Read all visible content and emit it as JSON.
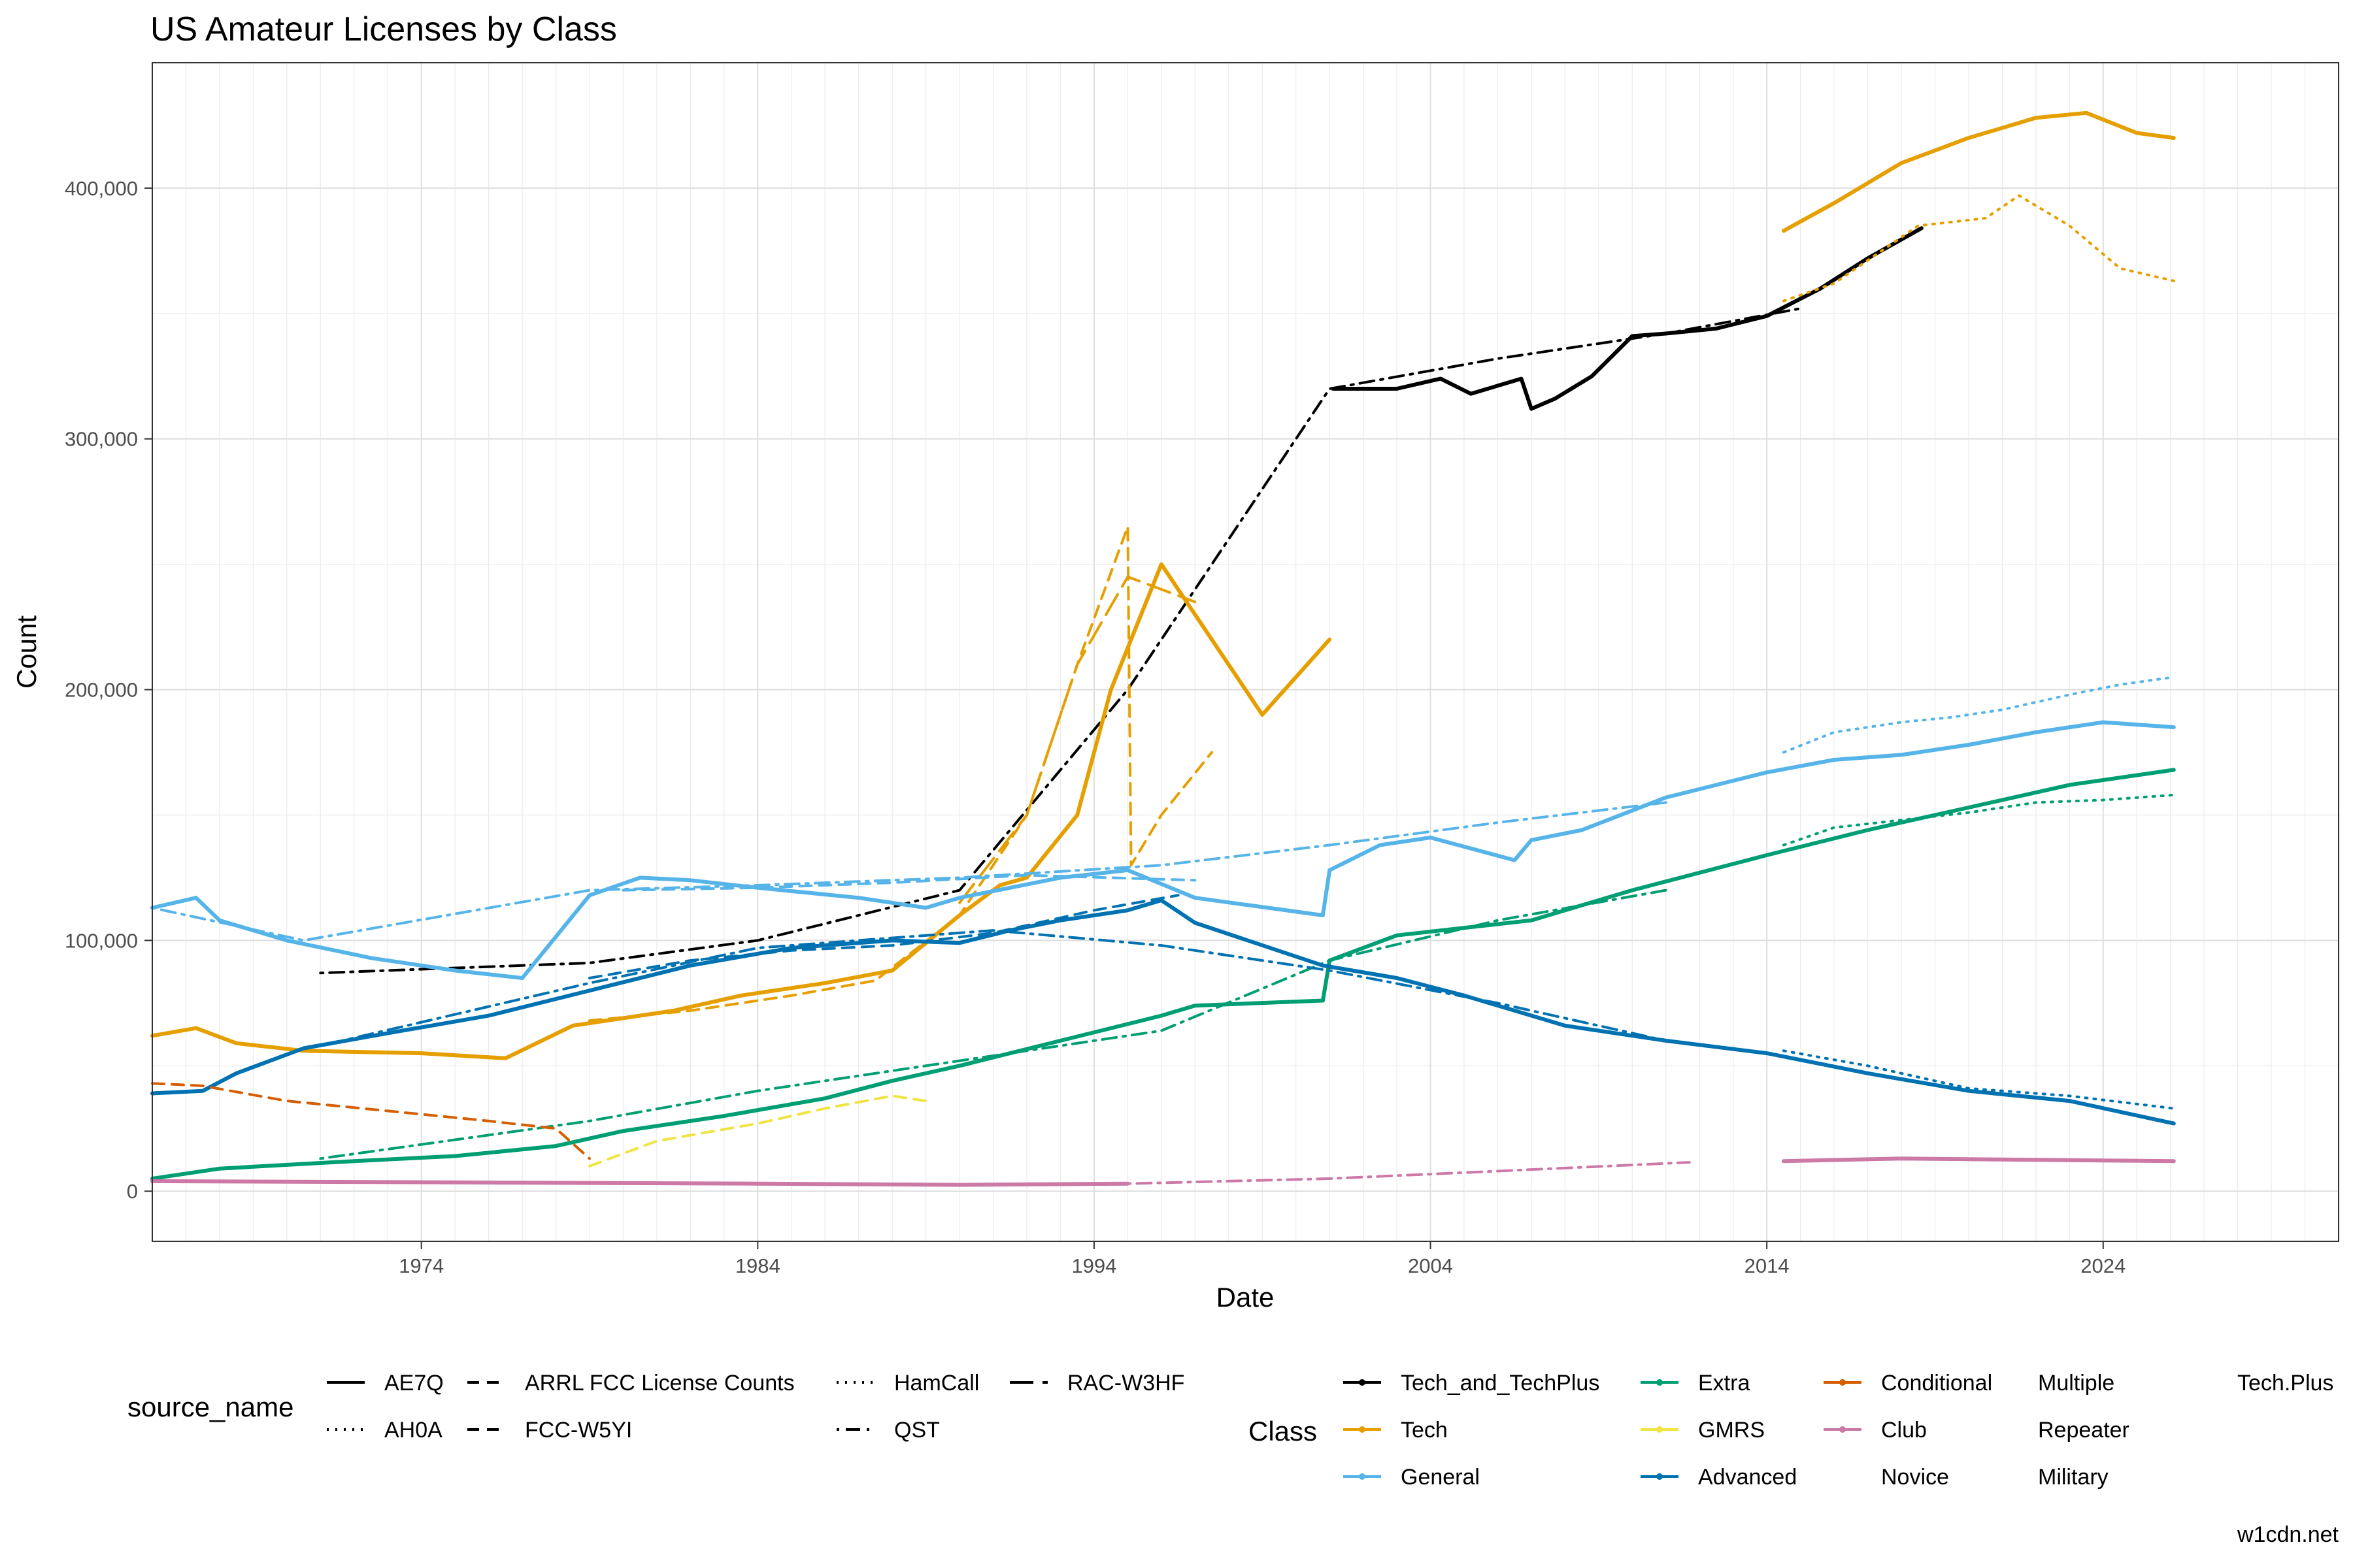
{
  "chart_data": {
    "type": "line",
    "title": "US Amateur Licenses by Class",
    "xlabel": "Date",
    "ylabel": "Count",
    "xlim": [
      1966,
      2031
    ],
    "ylim": [
      -20000,
      450000
    ],
    "x_ticks": [
      1974,
      1984,
      1994,
      2004,
      2014,
      2024
    ],
    "x_tick_labels": [
      "1974",
      "1984",
      "1994",
      "2004",
      "2014",
      "2024"
    ],
    "y_ticks": [
      0,
      100000,
      200000,
      300000,
      400000
    ],
    "y_tick_labels": [
      "0",
      "100,000",
      "200,000",
      "300,000",
      "400,000"
    ],
    "grid": true,
    "caption": "w1cdn.net",
    "source_legend": {
      "title": "source_name",
      "entries": [
        {
          "label": "AE7Q",
          "dash": "solid"
        },
        {
          "label": "AH0A",
          "dash": "dotted"
        },
        {
          "label": "ARRL FCC License Counts",
          "dash": "dashed"
        },
        {
          "label": "FCC-W5YI",
          "dash": "dashed"
        },
        {
          "label": "HamCall",
          "dash": "dotted"
        },
        {
          "label": "QST",
          "dash": "dotdash"
        },
        {
          "label": "RAC-W3HF",
          "dash": "longdash"
        }
      ]
    },
    "class_legend": {
      "title": "Class",
      "entries": [
        {
          "label": "Tech_and_TechPlus",
          "color": "#000000"
        },
        {
          "label": "Tech",
          "color": "#E69F00"
        },
        {
          "label": "General",
          "color": "#56B4E9"
        },
        {
          "label": "Extra",
          "color": "#009E73"
        },
        {
          "label": "GMRS",
          "color": "#F0E442"
        },
        {
          "label": "Advanced",
          "color": "#0072B2"
        },
        {
          "label": "Conditional",
          "color": "#D55E00"
        },
        {
          "label": "Club",
          "color": "#CC79A7"
        },
        {
          "label": "Novice",
          "color": ""
        },
        {
          "label": "Multiple",
          "color": ""
        },
        {
          "label": "Repeater",
          "color": ""
        },
        {
          "label": "Military",
          "color": ""
        },
        {
          "label": "Tech.Plus",
          "color": ""
        }
      ]
    },
    "series": [
      {
        "name": "Tech_and_TechPlus / AE7Q",
        "color": "#000000",
        "dash": "solid",
        "x": [
          2001.1,
          2003,
          2004.3,
          2005.2,
          2006.7,
          2007.0,
          2007.7,
          2008.8,
          2010,
          2011,
          2012.5,
          2014,
          2015.6,
          2017,
          2018.6
        ],
        "y": [
          320000,
          320000,
          324000,
          318000,
          324000,
          312000,
          316000,
          325000,
          341000,
          342000,
          344000,
          349000,
          360000,
          372000,
          384000
        ]
      },
      {
        "name": "Tech_and_TechPlus / QST",
        "color": "#000000",
        "dash": "dotdash",
        "x": [
          1971,
          1979,
          1984,
          1990,
          1995,
          2001,
          2006,
          2011,
          2015
        ],
        "y": [
          87000,
          91000,
          100000,
          120000,
          200000,
          320000,
          332000,
          342000,
          352000
        ]
      },
      {
        "name": "Tech / AE7Q",
        "color": "#E69F00",
        "dash": "solid",
        "x": [
          1966,
          1967.3,
          1968.5,
          1970.5,
          1974,
          1976.5,
          1978.5,
          1981.5,
          1983.5,
          1986,
          1988,
          1990,
          1991.2,
          1992,
          1993.5,
          1994.5,
          1996,
          1999,
          2001.0
        ],
        "y": [
          62000,
          65000,
          59000,
          56000,
          55000,
          53000,
          66000,
          72000,
          78000,
          83000,
          88000,
          110000,
          122000,
          125000,
          150000,
          200000,
          250000,
          190000,
          220000
        ],
        "note": "approximate trace"
      },
      {
        "name": "Tech / AE7Q 2014+",
        "color": "#E69F00",
        "dash": "solid",
        "x": [
          2014.5,
          2016,
          2018,
          2020,
          2022,
          2023.5,
          2025,
          2026.1
        ],
        "y": [
          383000,
          394000,
          410000,
          420000,
          428000,
          430000,
          422000,
          420000
        ]
      },
      {
        "name": "Tech / HamCall",
        "color": "#E69F00",
        "dash": "dotted",
        "x": [
          2014.5,
          2016,
          2018.5,
          2020.5,
          2021.5,
          2023,
          2024.5,
          2026.1
        ],
        "y": [
          355000,
          362000,
          385000,
          388000,
          397000,
          385000,
          368000,
          363000
        ]
      },
      {
        "name": "Tech / FCC-W5YI",
        "color": "#E69F00",
        "dash": "dashed",
        "x": [
          1979,
          1982,
          1985,
          1987.5,
          1990,
          1992,
          1993.5,
          1995,
          1995.1,
          1996,
          1997.5
        ],
        "y": [
          68000,
          72000,
          78000,
          84000,
          110000,
          150000,
          210000,
          265000,
          130000,
          150000,
          175000
        ]
      },
      {
        "name": "Tech / RAC-W3HF",
        "color": "#E69F00",
        "dash": "longdash",
        "x": [
          1990,
          1992,
          1993.5,
          1995,
          1997
        ],
        "y": [
          115000,
          150000,
          210000,
          245000,
          235000
        ]
      },
      {
        "name": "General / AE7Q",
        "color": "#56B4E9",
        "dash": "solid",
        "x": [
          1966,
          1967.3,
          1968,
          1970,
          1972.5,
          1975,
          1977,
          1979,
          1980.5,
          1982,
          1984,
          1987,
          1989,
          1990,
          1993,
          1995,
          1997,
          2000.8,
          2001,
          2002.5,
          2004,
          2006.5,
          2007,
          2008.5,
          2011,
          2014,
          2016,
          2018,
          2020,
          2022,
          2024,
          2026.1
        ],
        "y": [
          113000,
          117000,
          108000,
          100000,
          93000,
          88000,
          85000,
          118000,
          125000,
          124000,
          121000,
          117000,
          113000,
          117000,
          125000,
          128000,
          117000,
          110000,
          128000,
          138000,
          141000,
          132000,
          140000,
          144000,
          157000,
          167000,
          172000,
          174000,
          178000,
          183000,
          187000,
          185000
        ]
      },
      {
        "name": "General / HamCall",
        "color": "#56B4E9",
        "dash": "dotted",
        "x": [
          2014.5,
          2016,
          2018,
          2019.5,
          2021,
          2023,
          2024.5,
          2026.1
        ],
        "y": [
          175000,
          183000,
          187000,
          189000,
          192000,
          198000,
          202000,
          205000
        ]
      },
      {
        "name": "General / QST",
        "color": "#56B4E9",
        "dash": "dotdash",
        "x": [
          1966,
          1970.5,
          1979,
          1984,
          1990,
          1996,
          2001,
          2006,
          2011
        ],
        "y": [
          113000,
          100000,
          120000,
          122000,
          125000,
          130000,
          138000,
          147000,
          155000
        ]
      },
      {
        "name": "General / ARRL",
        "color": "#56B4E9",
        "dash": "dashed",
        "x": [
          1980,
          1984,
          1988,
          1992,
          1997
        ],
        "y": [
          120000,
          121000,
          123000,
          126000,
          124000
        ]
      },
      {
        "name": "Extra / AE7Q",
        "color": "#009E73",
        "dash": "solid",
        "x": [
          1966,
          1968,
          1972,
          1975,
          1978,
          1980,
          1983,
          1986,
          1988,
          1990,
          1993,
          1996,
          1997,
          2000.8,
          2001,
          2003,
          2007,
          2010,
          2014,
          2017,
          2020,
          2023,
          2026.1
        ],
        "y": [
          5000,
          9000,
          12000,
          14000,
          18000,
          24000,
          30000,
          37000,
          44000,
          50000,
          60000,
          70000,
          74000,
          76000,
          92000,
          102000,
          108000,
          120000,
          134000,
          144000,
          153000,
          162000,
          168000
        ]
      },
      {
        "name": "Extra / HamCall",
        "color": "#009E73",
        "dash": "dotted",
        "x": [
          2014.5,
          2016,
          2018,
          2020,
          2022,
          2024,
          2026.1
        ],
        "y": [
          138000,
          145000,
          148000,
          151000,
          155000,
          156000,
          158000
        ]
      },
      {
        "name": "Extra / QST",
        "color": "#009E73",
        "dash": "dotdash",
        "x": [
          1971,
          1979,
          1984,
          1990,
          1996,
          2001,
          2006,
          2011
        ],
        "y": [
          13000,
          28000,
          40000,
          52000,
          64000,
          92000,
          108000,
          120000
        ]
      },
      {
        "name": "GMRS / FCC-W5YI",
        "color": "#F0E442",
        "dash": "dashed",
        "x": [
          1979,
          1981,
          1984,
          1986,
          1988,
          1989
        ],
        "y": [
          10000,
          20000,
          27000,
          33000,
          38000,
          36000
        ]
      },
      {
        "name": "Advanced / AE7Q",
        "color": "#0072B2",
        "dash": "solid",
        "x": [
          1966,
          1967.5,
          1968.5,
          1970.5,
          1973,
          1976,
          1979,
          1982,
          1985,
          1988,
          1990,
          1991.5,
          1993,
          1995,
          1996,
          1997,
          2000.8,
          2003,
          2005,
          2008,
          2011,
          2014,
          2017,
          2020,
          2023,
          2026.1
        ],
        "y": [
          39000,
          40000,
          47000,
          57000,
          63000,
          70000,
          80000,
          90000,
          97000,
          100000,
          99000,
          104000,
          108000,
          112000,
          116000,
          107000,
          90000,
          85000,
          78000,
          66000,
          60000,
          55000,
          47000,
          40000,
          36000,
          27000
        ]
      },
      {
        "name": "Advanced / HamCall",
        "color": "#0072B2",
        "dash": "dotted",
        "x": [
          2014.5,
          2017,
          2020,
          2023,
          2026.1
        ],
        "y": [
          56000,
          50000,
          41000,
          38000,
          33000
        ]
      },
      {
        "name": "Advanced / QST",
        "color": "#0072B2",
        "dash": "dotdash",
        "x": [
          1971,
          1979,
          1984,
          1991,
          1996,
          2001,
          2006,
          2011
        ],
        "y": [
          58000,
          83000,
          97000,
          104000,
          98000,
          88000,
          75000,
          60000
        ]
      },
      {
        "name": "Advanced / ARRL",
        "color": "#0072B2",
        "dash": "dashed",
        "x": [
          1979,
          1982,
          1985,
          1988,
          1991,
          1994,
          1996.5
        ],
        "y": [
          85000,
          92000,
          96000,
          98000,
          103000,
          112000,
          118000
        ]
      },
      {
        "name": "Conditional / AE7Q",
        "color": "#D55E00",
        "dash": "dashed",
        "x": [
          1966,
          1967.5,
          1970,
          1973,
          1976,
          1978,
          1979
        ],
        "y": [
          43000,
          42000,
          36000,
          32000,
          28000,
          25000,
          13000
        ]
      },
      {
        "name": "Club / AE7Q",
        "color": "#CC79A7",
        "dash": "solid",
        "x": [
          1966,
          1975,
          1984,
          1990,
          1995
        ],
        "y": [
          4000,
          3500,
          3000,
          2500,
          3000
        ]
      },
      {
        "name": "Club / QST",
        "color": "#CC79A7",
        "dash": "dotdash",
        "x": [
          1995,
          2001,
          2006,
          2011.7
        ],
        "y": [
          3000,
          5000,
          8000,
          11500
        ]
      },
      {
        "name": "Club / HamCall",
        "color": "#CC79A7",
        "dash": "solid",
        "x": [
          2014.5,
          2018,
          2022,
          2026.1
        ],
        "y": [
          12000,
          13000,
          12500,
          12000
        ]
      }
    ]
  }
}
